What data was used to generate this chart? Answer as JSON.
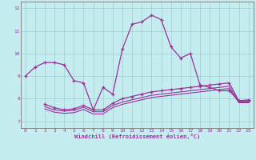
{
  "xlabel": "Windchill (Refroidissement éolien,°C)",
  "xlim": [
    -0.5,
    23.5
  ],
  "ylim": [
    6.7,
    12.3
  ],
  "xticks": [
    0,
    1,
    2,
    3,
    4,
    5,
    6,
    7,
    8,
    9,
    10,
    11,
    12,
    13,
    14,
    15,
    16,
    17,
    18,
    19,
    20,
    21,
    22,
    23
  ],
  "yticks": [
    7,
    8,
    9,
    10,
    11,
    12
  ],
  "background_color": "#c5edf0",
  "grid_color": "#9fcdd4",
  "line_color": "#993399",
  "line1_x": [
    0,
    1,
    2,
    3,
    4,
    5,
    6,
    7,
    8,
    9,
    10,
    11,
    12,
    13,
    14,
    15,
    16,
    17,
    18,
    19,
    20,
    21,
    22,
    23
  ],
  "line1_y": [
    9.0,
    9.4,
    9.6,
    9.6,
    9.5,
    8.8,
    8.7,
    7.5,
    8.5,
    8.2,
    10.2,
    11.3,
    11.4,
    11.7,
    11.5,
    10.3,
    9.8,
    10.0,
    8.6,
    8.5,
    8.35,
    8.35,
    7.9,
    7.95
  ],
  "line2_x": [
    2,
    3,
    4,
    5,
    6,
    7,
    8,
    9,
    10,
    11,
    12,
    13,
    14,
    15,
    16,
    17,
    18,
    19,
    20,
    21,
    22,
    23
  ],
  "line2_y": [
    7.75,
    7.6,
    7.5,
    7.55,
    7.7,
    7.5,
    7.5,
    7.8,
    8.0,
    8.1,
    8.2,
    8.3,
    8.35,
    8.4,
    8.45,
    8.5,
    8.55,
    8.6,
    8.65,
    8.7,
    7.9,
    7.9
  ],
  "line3_x": [
    2,
    3,
    4,
    5,
    6,
    7,
    8,
    9,
    10,
    11,
    12,
    13,
    14,
    15,
    16,
    17,
    18,
    19,
    20,
    21,
    22,
    23
  ],
  "line3_y": [
    7.65,
    7.5,
    7.45,
    7.48,
    7.62,
    7.42,
    7.42,
    7.7,
    7.85,
    7.95,
    8.05,
    8.15,
    8.2,
    8.25,
    8.3,
    8.35,
    8.4,
    8.45,
    8.5,
    8.55,
    7.85,
    7.85
  ],
  "line4_x": [
    2,
    3,
    4,
    5,
    6,
    7,
    8,
    9,
    10,
    11,
    12,
    13,
    14,
    15,
    16,
    17,
    18,
    19,
    20,
    21,
    22,
    23
  ],
  "line4_y": [
    7.55,
    7.4,
    7.35,
    7.38,
    7.52,
    7.32,
    7.32,
    7.6,
    7.75,
    7.85,
    7.95,
    8.05,
    8.1,
    8.15,
    8.2,
    8.25,
    8.3,
    8.35,
    8.4,
    8.45,
    7.82,
    7.82
  ]
}
